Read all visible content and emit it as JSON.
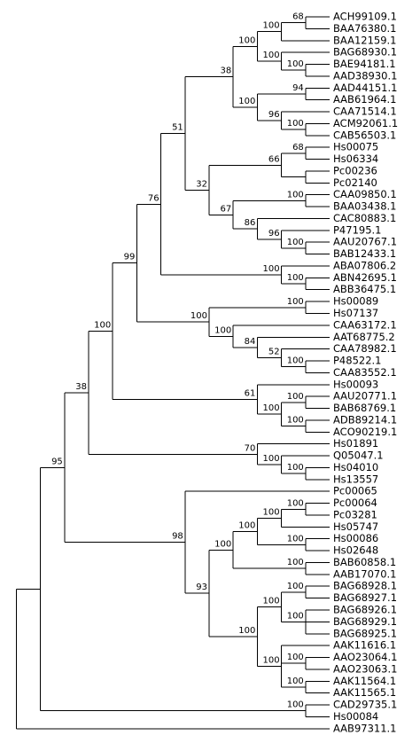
{
  "tree": {
    "children": [
      {
        "children": [
          {
            "support": 95,
            "children": [
              {
                "support": 38,
                "children": [
                  {
                    "support": 100,
                    "children": [
                      {
                        "support": 99,
                        "children": [
                          {
                            "support": 76,
                            "children": [
                              {
                                "support": 51,
                                "children": [
                                  {
                                    "support": 38,
                                    "children": [
                                      {
                                        "support": 100,
                                        "children": [
                                          {
                                            "support": 100,
                                            "children": [
                                              {
                                                "support": 68,
                                                "children": [
                                                  {
                                                    "label": "ACH99109.1"
                                                  },
                                                  {
                                                    "label": "BAA76380.1"
                                                  }
                                                ]
                                              },
                                              {
                                                "label": "BAA12159.1"
                                              }
                                            ]
                                          },
                                          {
                                            "support": 100,
                                            "children": [
                                              {
                                                "label": "BAG68930.1"
                                              },
                                              {
                                                "support": 100,
                                                "children": [
                                                  {
                                                    "label": "BAE94181.1"
                                                  },
                                                  {
                                                    "label": "AAD38930.1"
                                                  }
                                                ]
                                              }
                                            ]
                                          }
                                        ]
                                      },
                                      {
                                        "support": 100,
                                        "children": [
                                          {
                                            "support": 94,
                                            "children": [
                                              {
                                                "label": "AAD44151.1"
                                              },
                                              {
                                                "label": "AAB61964.1"
                                              }
                                            ]
                                          },
                                          {
                                            "support": 96,
                                            "children": [
                                              {
                                                "label": "CAA71514.1"
                                              },
                                              {
                                                "support": 100,
                                                "children": [
                                                  {
                                                    "label": "ACM92061.1"
                                                  },
                                                  {
                                                    "label": "CAB56503.1"
                                                  }
                                                ]
                                              }
                                            ]
                                          }
                                        ]
                                      }
                                    ]
                                  },
                                  {
                                    "support": 32,
                                    "children": [
                                      {
                                        "support": 66,
                                        "children": [
                                          {
                                            "support": 68,
                                            "children": [
                                              {
                                                "label": "Hs00075"
                                              },
                                              {
                                                "label": "Hs06334"
                                              }
                                            ]
                                          },
                                          {
                                            "children": [
                                              {
                                                "label": "Pc00236"
                                              },
                                              {
                                                "label": "Pc02140"
                                              }
                                            ]
                                          }
                                        ]
                                      },
                                      {
                                        "support": 67,
                                        "children": [
                                          {
                                            "support": 100,
                                            "children": [
                                              {
                                                "label": "CAA09850.1"
                                              },
                                              {
                                                "label": "BAA03438.1"
                                              }
                                            ]
                                          },
                                          {
                                            "support": 86,
                                            "children": [
                                              {
                                                "label": "CAC80883.1"
                                              },
                                              {
                                                "support": 96,
                                                "children": [
                                                  {
                                                    "label": "P47195.1"
                                                  },
                                                  {
                                                    "support": 100,
                                                    "children": [
                                                      {
                                                        "label": "AAU20767.1"
                                                      },
                                                      {
                                                        "label": "BAB12433.1"
                                                      }
                                                    ]
                                                  }
                                                ]
                                              }
                                            ]
                                          }
                                        ]
                                      }
                                    ]
                                  }
                                ]
                              },
                              {
                                "support": 100,
                                "children": [
                                  {
                                    "label": "ABA07806.2"
                                  },
                                  {
                                    "support": 100,
                                    "children": [
                                      {
                                        "label": "ABN42695.1"
                                      },
                                      {
                                        "label": "ABB36475.1"
                                      }
                                    ]
                                  }
                                ]
                              }
                            ]
                          },
                          {
                            "support": 100,
                            "children": [
                              {
                                "support": 100,
                                "children": [
                                  {
                                    "label": "Hs00089"
                                  },
                                  {
                                    "label": "Hs07137"
                                  }
                                ]
                              },
                              {
                                "support": 100,
                                "children": [
                                  {
                                    "label": "CAA63172.1"
                                  },
                                  {
                                    "support": 84,
                                    "children": [
                                      {
                                        "label": "AAT68775.2"
                                      },
                                      {
                                        "support": 52,
                                        "children": [
                                          {
                                            "label": "CAA78982.1"
                                          },
                                          {
                                            "support": 100,
                                            "children": [
                                              {
                                                "label": "P48522.1"
                                              },
                                              {
                                                "label": "CAA83552.1"
                                              }
                                            ]
                                          }
                                        ]
                                      }
                                    ]
                                  }
                                ]
                              }
                            ]
                          }
                        ]
                      },
                      {
                        "support": 61,
                        "children": [
                          {
                            "label": "Hs00093"
                          },
                          {
                            "support": 100,
                            "children": [
                              {
                                "support": 100,
                                "children": [
                                  {
                                    "label": "AAU20771.1"
                                  },
                                  {
                                    "label": "BAB68769.1"
                                  }
                                ]
                              },
                              {
                                "support": 100,
                                "children": [
                                  {
                                    "label": "ADB89214.1"
                                  },
                                  {
                                    "label": "ACO90219.1"
                                  }
                                ]
                              }
                            ]
                          }
                        ]
                      }
                    ]
                  },
                  {
                    "support": 70,
                    "children": [
                      {
                        "label": "Hs01891"
                      },
                      {
                        "support": 100,
                        "children": [
                          {
                            "label": "Q05047.1"
                          },
                          {
                            "support": 100,
                            "children": [
                              {
                                "label": "Hs04010"
                              },
                              {
                                "label": "Hs13557"
                              }
                            ]
                          }
                        ]
                      }
                    ]
                  }
                ]
              },
              {
                "support": 98,
                "children": [
                  {
                    "label": "Pc00065"
                  },
                  {
                    "support": 93,
                    "children": [
                      {
                        "support": 100,
                        "children": [
                          {
                            "support": 100,
                            "children": [
                              {
                                "support": 100,
                                "children": [
                                  {
                                    "support": 100,
                                    "children": [
                                      {
                                        "label": "Pc00064"
                                      },
                                      {
                                        "label": "Pc03281"
                                      }
                                    ]
                                  },
                                  {
                                    "label": "Hs05747"
                                  }
                                ]
                              },
                              {
                                "support": 100,
                                "children": [
                                  {
                                    "label": "Hs00086"
                                  },
                                  {
                                    "label": "Hs02648"
                                  }
                                ]
                              }
                            ]
                          },
                          {
                            "support": 100,
                            "children": [
                              {
                                "label": "BAB60858.1"
                              },
                              {
                                "label": "AAB17070.1"
                              }
                            ]
                          }
                        ]
                      },
                      {
                        "support": 100,
                        "children": [
                          {
                            "support": 100,
                            "children": [
                              {
                                "support": 100,
                                "children": [
                                  {
                                    "label": "BAG68928.1"
                                  },
                                  {
                                    "label": "BAG68927.1"
                                  }
                                ]
                              },
                              {
                                "support": 100,
                                "children": [
                                  {
                                    "label": "BAG68926.1"
                                  },
                                  {
                                    "label": "BAG68929.1"
                                  },
                                  {
                                    "label": "BAG68925.1"
                                  }
                                ]
                              }
                            ]
                          },
                          {
                            "support": 100,
                            "children": [
                              {
                                "label": "AAK11616.1"
                              },
                              {
                                "support": 100,
                                "children": [
                                  {
                                    "label": "AAO23064.1"
                                  },
                                  {
                                    "label": "AAO23063.1"
                                  }
                                ]
                              },
                              {
                                "support": 100,
                                "children": [
                                  {
                                    "label": "AAK11564.1"
                                  },
                                  {
                                    "label": "AAK11565.1"
                                  }
                                ]
                              }
                            ]
                          }
                        ]
                      }
                    ]
                  }
                ]
              }
            ]
          },
          {
            "support": 100,
            "children": [
              {
                "label": "CAD29735.1"
              },
              {
                "label": "Hs00084"
              }
            ]
          }
        ]
      },
      {
        "label": "AAB97311.1"
      }
    ]
  }
}
